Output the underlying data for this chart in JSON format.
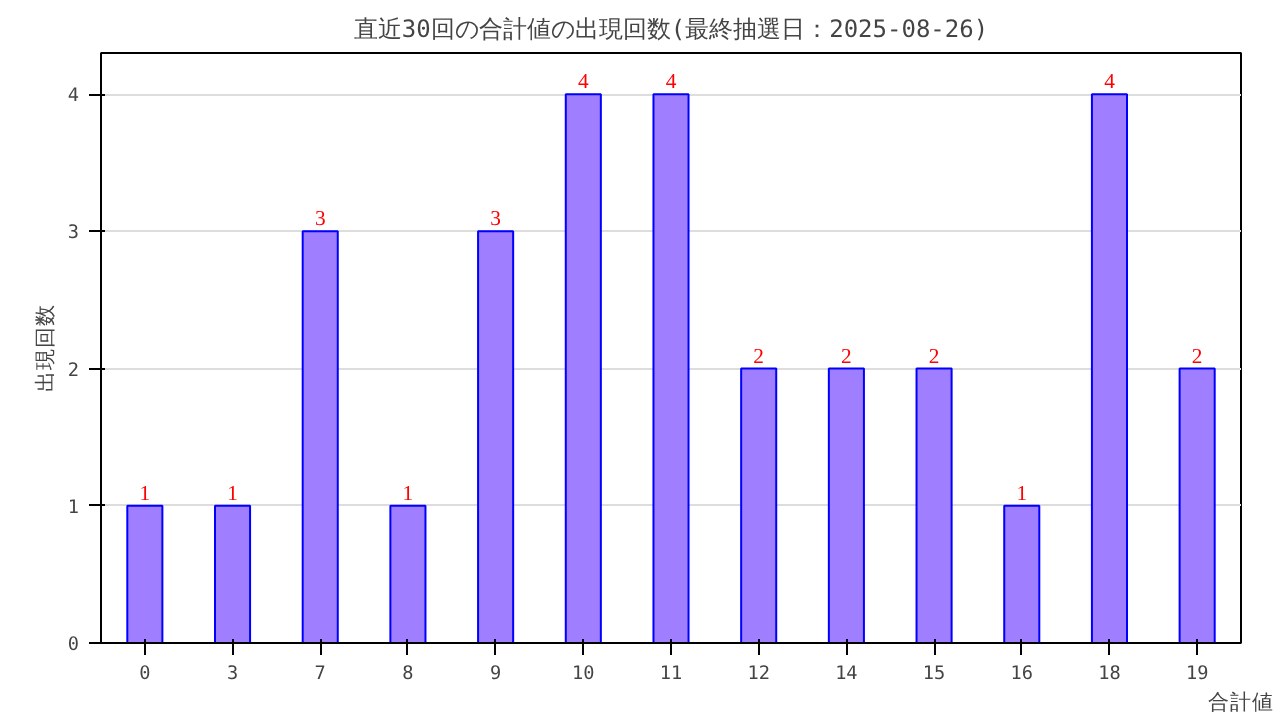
{
  "chart_data": {
    "type": "bar",
    "title": "直近30回の合計値の出現回数(最終抽選日：2025-08-26)",
    "xlabel": "合計値",
    "ylabel": "出現回数",
    "categories": [
      "0",
      "3",
      "7",
      "8",
      "9",
      "10",
      "11",
      "12",
      "14",
      "15",
      "16",
      "18",
      "19"
    ],
    "values": [
      1,
      1,
      3,
      1,
      3,
      4,
      4,
      2,
      2,
      2,
      1,
      4,
      2
    ],
    "color": "#9f7fff",
    "ylim": [
      0,
      4.3
    ],
    "yticks": [
      0,
      1,
      2,
      3,
      4
    ],
    "grid": "y",
    "data_labels": true
  }
}
